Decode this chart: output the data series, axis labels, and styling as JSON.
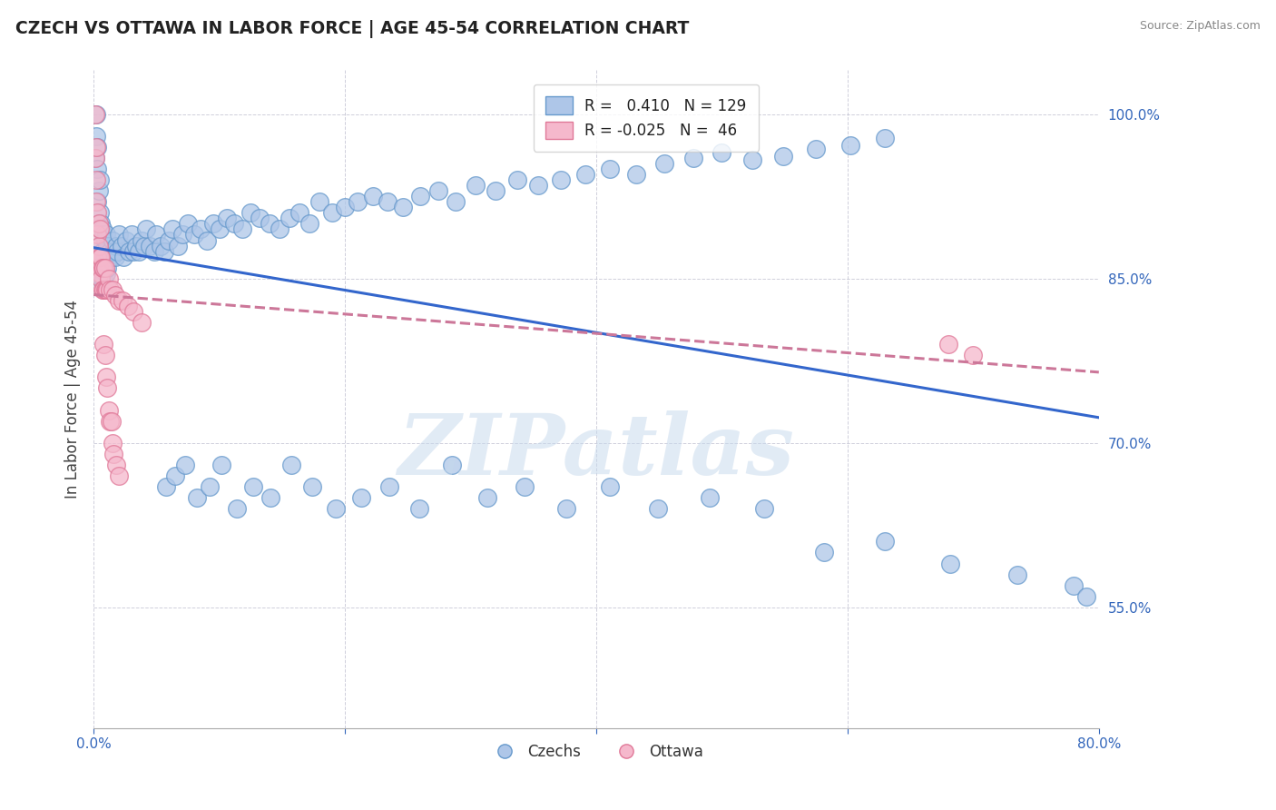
{
  "title": "CZECH VS OTTAWA IN LABOR FORCE | AGE 45-54 CORRELATION CHART",
  "source": "Source: ZipAtlas.com",
  "ylabel": "In Labor Force | Age 45-54",
  "xmin": 0.0,
  "xmax": 0.8,
  "ymin": 0.44,
  "ymax": 1.04,
  "yticks": [
    0.55,
    0.7,
    0.85,
    1.0
  ],
  "ytick_labels": [
    "55.0%",
    "70.0%",
    "85.0%",
    "100.0%"
  ],
  "xticks": [
    0.0,
    0.2,
    0.4,
    0.6,
    0.8
  ],
  "czech_color": "#aec6e8",
  "czech_edge": "#6699cc",
  "ottawa_color": "#f5b8cc",
  "ottawa_edge": "#e07898",
  "trend_czech_color": "#3366cc",
  "trend_ottawa_color": "#cc7799",
  "R_czech": 0.41,
  "N_czech": 129,
  "R_ottawa": -0.025,
  "N_ottawa": 46,
  "watermark": "ZIPatlas",
  "czech_x": [
    0.001,
    0.002,
    0.002,
    0.003,
    0.003,
    0.003,
    0.004,
    0.004,
    0.004,
    0.005,
    0.005,
    0.005,
    0.005,
    0.006,
    0.006,
    0.006,
    0.007,
    0.007,
    0.007,
    0.008,
    0.008,
    0.008,
    0.009,
    0.009,
    0.01,
    0.01,
    0.01,
    0.011,
    0.011,
    0.012,
    0.013,
    0.014,
    0.015,
    0.016,
    0.017,
    0.018,
    0.019,
    0.02,
    0.022,
    0.024,
    0.026,
    0.028,
    0.03,
    0.032,
    0.034,
    0.036,
    0.038,
    0.04,
    0.042,
    0.045,
    0.048,
    0.05,
    0.053,
    0.056,
    0.06,
    0.063,
    0.067,
    0.071,
    0.075,
    0.08,
    0.085,
    0.09,
    0.095,
    0.1,
    0.106,
    0.112,
    0.118,
    0.125,
    0.132,
    0.14,
    0.148,
    0.156,
    0.164,
    0.172,
    0.18,
    0.19,
    0.2,
    0.21,
    0.222,
    0.234,
    0.246,
    0.26,
    0.274,
    0.288,
    0.304,
    0.32,
    0.337,
    0.354,
    0.372,
    0.391,
    0.411,
    0.432,
    0.454,
    0.477,
    0.5,
    0.524,
    0.549,
    0.575,
    0.602,
    0.63,
    0.058,
    0.065,
    0.073,
    0.082,
    0.092,
    0.102,
    0.114,
    0.127,
    0.141,
    0.157,
    0.174,
    0.193,
    0.213,
    0.235,
    0.259,
    0.285,
    0.313,
    0.343,
    0.376,
    0.411,
    0.449,
    0.49,
    0.534,
    0.581,
    0.63,
    0.682,
    0.735,
    0.78,
    0.79
  ],
  "czech_y": [
    0.96,
    0.98,
    1.0,
    0.92,
    0.95,
    0.97,
    0.87,
    0.9,
    0.93,
    0.86,
    0.88,
    0.91,
    0.94,
    0.85,
    0.87,
    0.9,
    0.85,
    0.875,
    0.895,
    0.85,
    0.87,
    0.89,
    0.87,
    0.885,
    0.855,
    0.875,
    0.89,
    0.86,
    0.88,
    0.87,
    0.875,
    0.87,
    0.885,
    0.875,
    0.87,
    0.88,
    0.875,
    0.89,
    0.88,
    0.87,
    0.885,
    0.875,
    0.89,
    0.875,
    0.88,
    0.875,
    0.885,
    0.88,
    0.895,
    0.88,
    0.875,
    0.89,
    0.88,
    0.875,
    0.885,
    0.895,
    0.88,
    0.89,
    0.9,
    0.89,
    0.895,
    0.885,
    0.9,
    0.895,
    0.905,
    0.9,
    0.895,
    0.91,
    0.905,
    0.9,
    0.895,
    0.905,
    0.91,
    0.9,
    0.92,
    0.91,
    0.915,
    0.92,
    0.925,
    0.92,
    0.915,
    0.925,
    0.93,
    0.92,
    0.935,
    0.93,
    0.94,
    0.935,
    0.94,
    0.945,
    0.95,
    0.945,
    0.955,
    0.96,
    0.965,
    0.958,
    0.962,
    0.968,
    0.972,
    0.978,
    0.66,
    0.67,
    0.68,
    0.65,
    0.66,
    0.68,
    0.64,
    0.66,
    0.65,
    0.68,
    0.66,
    0.64,
    0.65,
    0.66,
    0.64,
    0.68,
    0.65,
    0.66,
    0.64,
    0.66,
    0.64,
    0.65,
    0.64,
    0.6,
    0.61,
    0.59,
    0.58,
    0.57,
    0.56
  ],
  "ottawa_x": [
    0.001,
    0.001,
    0.002,
    0.002,
    0.002,
    0.003,
    0.003,
    0.003,
    0.004,
    0.004,
    0.004,
    0.005,
    0.005,
    0.005,
    0.006,
    0.006,
    0.007,
    0.007,
    0.008,
    0.008,
    0.009,
    0.009,
    0.01,
    0.011,
    0.012,
    0.013,
    0.015,
    0.017,
    0.02,
    0.023,
    0.027,
    0.032,
    0.038,
    0.008,
    0.009,
    0.01,
    0.011,
    0.012,
    0.013,
    0.014,
    0.015,
    0.016,
    0.018,
    0.02,
    0.68,
    0.7
  ],
  "ottawa_y": [
    0.96,
    1.0,
    0.92,
    0.94,
    0.97,
    0.87,
    0.89,
    0.91,
    0.86,
    0.88,
    0.9,
    0.855,
    0.87,
    0.895,
    0.85,
    0.87,
    0.84,
    0.86,
    0.84,
    0.86,
    0.84,
    0.86,
    0.84,
    0.84,
    0.85,
    0.84,
    0.84,
    0.835,
    0.83,
    0.83,
    0.825,
    0.82,
    0.81,
    0.79,
    0.78,
    0.76,
    0.75,
    0.73,
    0.72,
    0.72,
    0.7,
    0.69,
    0.68,
    0.67,
    0.79,
    0.78
  ]
}
